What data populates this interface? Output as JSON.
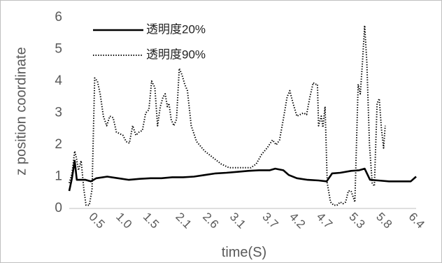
{
  "chart_data": {
    "type": "line",
    "title": "",
    "xlabel": "time(S)",
    "ylabel": "z position coordinate",
    "ylim": [
      0,
      6
    ],
    "xlim": [
      0,
      6.4
    ],
    "y_ticks": [
      0,
      1,
      2,
      3,
      4,
      5,
      6
    ],
    "x_ticks": [
      0.5,
      1.0,
      1.5,
      2.1,
      2.6,
      3.1,
      3.7,
      4.2,
      4.7,
      5.3,
      5.8,
      6.4
    ],
    "x_tick_labels": [
      "0.5",
      "1.0",
      "1.5",
      "2.1",
      "2.6",
      "3.1",
      "3.7",
      "4.2",
      "4.7",
      "5.3",
      "5.8",
      "6.4"
    ],
    "grid": false,
    "legend_position": "top-left",
    "series": [
      {
        "name": "透明度20%",
        "style": "solid",
        "color": "#000000",
        "points": [
          [
            0.0,
            0.55
          ],
          [
            0.05,
            0.95
          ],
          [
            0.1,
            1.5
          ],
          [
            0.14,
            0.9
          ],
          [
            0.3,
            0.9
          ],
          [
            0.4,
            0.85
          ],
          [
            0.5,
            0.95
          ],
          [
            0.7,
            1.0
          ],
          [
            0.9,
            0.95
          ],
          [
            1.1,
            0.9
          ],
          [
            1.3,
            0.93
          ],
          [
            1.5,
            0.95
          ],
          [
            1.7,
            0.95
          ],
          [
            1.9,
            0.98
          ],
          [
            2.1,
            0.98
          ],
          [
            2.3,
            1.0
          ],
          [
            2.5,
            1.05
          ],
          [
            2.7,
            1.1
          ],
          [
            2.9,
            1.12
          ],
          [
            3.1,
            1.15
          ],
          [
            3.3,
            1.18
          ],
          [
            3.5,
            1.2
          ],
          [
            3.6,
            1.2
          ],
          [
            3.7,
            1.2
          ],
          [
            3.8,
            1.25
          ],
          [
            3.95,
            1.2
          ],
          [
            4.05,
            1.05
          ],
          [
            4.2,
            0.95
          ],
          [
            4.4,
            0.9
          ],
          [
            4.6,
            0.88
          ],
          [
            4.75,
            0.85
          ],
          [
            4.85,
            1.1
          ],
          [
            5.0,
            1.12
          ],
          [
            5.2,
            1.18
          ],
          [
            5.35,
            1.2
          ],
          [
            5.45,
            1.25
          ],
          [
            5.55,
            0.9
          ],
          [
            5.7,
            0.88
          ],
          [
            5.9,
            0.85
          ],
          [
            6.1,
            0.85
          ],
          [
            6.3,
            0.85
          ],
          [
            6.4,
            1.0
          ]
        ]
      },
      {
        "name": "透明度90%",
        "style": "dotted",
        "color": "#000000",
        "points": [
          [
            0.0,
            0.8
          ],
          [
            0.05,
            1.1
          ],
          [
            0.1,
            1.8
          ],
          [
            0.13,
            1.6
          ],
          [
            0.17,
            1.2
          ],
          [
            0.22,
            1.5
          ],
          [
            0.27,
            0.6
          ],
          [
            0.31,
            0.1
          ],
          [
            0.37,
            0.1
          ],
          [
            0.42,
            0.6
          ],
          [
            0.47,
            4.1
          ],
          [
            0.52,
            4.0
          ],
          [
            0.57,
            3.6
          ],
          [
            0.63,
            2.9
          ],
          [
            0.69,
            2.6
          ],
          [
            0.75,
            2.9
          ],
          [
            0.81,
            2.85
          ],
          [
            0.87,
            2.4
          ],
          [
            0.93,
            2.35
          ],
          [
            0.99,
            2.3
          ],
          [
            1.05,
            2.1
          ],
          [
            1.11,
            2.05
          ],
          [
            1.17,
            2.6
          ],
          [
            1.23,
            2.3
          ],
          [
            1.29,
            2.4
          ],
          [
            1.35,
            2.45
          ],
          [
            1.41,
            3.0
          ],
          [
            1.47,
            3.1
          ],
          [
            1.52,
            4.0
          ],
          [
            1.58,
            3.8
          ],
          [
            1.63,
            2.6
          ],
          [
            1.68,
            3.2
          ],
          [
            1.73,
            3.5
          ],
          [
            1.77,
            3.6
          ],
          [
            1.81,
            3.2
          ],
          [
            1.84,
            3.3
          ],
          [
            1.88,
            2.8
          ],
          [
            1.93,
            2.6
          ],
          [
            1.98,
            2.8
          ],
          [
            2.03,
            4.4
          ],
          [
            2.08,
            4.2
          ],
          [
            2.13,
            3.9
          ],
          [
            2.18,
            3.7
          ],
          [
            2.25,
            2.6
          ],
          [
            2.35,
            2.1
          ],
          [
            2.5,
            1.8
          ],
          [
            2.65,
            1.6
          ],
          [
            2.8,
            1.4
          ],
          [
            2.95,
            1.28
          ],
          [
            3.1,
            1.28
          ],
          [
            3.25,
            1.28
          ],
          [
            3.35,
            1.28
          ],
          [
            3.45,
            1.4
          ],
          [
            3.55,
            1.7
          ],
          [
            3.65,
            1.9
          ],
          [
            3.75,
            2.15
          ],
          [
            3.82,
            2.0
          ],
          [
            3.88,
            2.15
          ],
          [
            3.95,
            2.8
          ],
          [
            4.02,
            3.5
          ],
          [
            4.07,
            3.7
          ],
          [
            4.13,
            3.3
          ],
          [
            4.2,
            2.9
          ],
          [
            4.26,
            2.95
          ],
          [
            4.32,
            3.0
          ],
          [
            4.38,
            2.95
          ],
          [
            4.44,
            3.5
          ],
          [
            4.5,
            3.95
          ],
          [
            4.54,
            3.9
          ],
          [
            4.58,
            3.9
          ],
          [
            4.6,
            2.6
          ],
          [
            4.65,
            2.9
          ],
          [
            4.68,
            2.55
          ],
          [
            4.72,
            3.2
          ],
          [
            4.76,
            0.8
          ],
          [
            4.82,
            0.2
          ],
          [
            4.88,
            0.1
          ],
          [
            4.94,
            0.1
          ],
          [
            5.0,
            0.2
          ],
          [
            5.05,
            0.15
          ],
          [
            5.1,
            0.2
          ],
          [
            5.15,
            0.55
          ],
          [
            5.2,
            0.55
          ],
          [
            5.27,
            0.2
          ],
          [
            5.33,
            3.9
          ],
          [
            5.37,
            3.6
          ],
          [
            5.41,
            4.6
          ],
          [
            5.45,
            5.75
          ],
          [
            5.49,
            4.6
          ],
          [
            5.54,
            2.0
          ],
          [
            5.59,
            0.8
          ],
          [
            5.63,
            0.7
          ],
          [
            5.68,
            3.3
          ],
          [
            5.72,
            3.45
          ],
          [
            5.76,
            2.5
          ],
          [
            5.8,
            1.9
          ],
          [
            5.83,
            2.6
          ]
        ]
      }
    ]
  }
}
